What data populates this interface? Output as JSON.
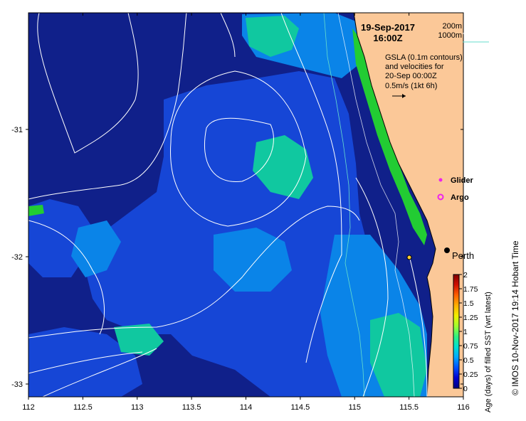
{
  "map": {
    "timestamp_date": "19-Sep-2017",
    "timestamp_time": "16:00Z",
    "depth_legend": [
      "200m",
      "1000m"
    ],
    "depth_legend_colors": [
      "#ffffff",
      "#66ddcc"
    ],
    "gsla_note": [
      "GSLA (0.1m contours)",
      "and velocities for",
      "20-Sep 00:00Z",
      "0.5m/s (1kt 6h)"
    ],
    "symbols": [
      {
        "label": "Glider",
        "color": "#ee22ee",
        "shape": "dot"
      },
      {
        "label": "Argo",
        "color": "#ee22ee",
        "shape": "ring"
      }
    ],
    "place_label": "Perth",
    "x_ticks": [
      "112",
      "112.5",
      "113",
      "113.5",
      "114",
      "114.5",
      "115",
      "115.5",
      "116"
    ],
    "y_ticks": [
      "-31",
      "-32",
      "-33"
    ],
    "land_color": "#fbc898",
    "credit": "© IMOS 10-Nov-2017 19:14 Hobart Time"
  },
  "colorbar": {
    "title": "Age (days) of filled SST (wrt latest)",
    "ticks": [
      "2",
      "1.75",
      "1.5",
      "1.25",
      "1",
      "0.75",
      "0.5",
      "0.25",
      "0"
    ],
    "colors": [
      "#000080",
      "#0000d0",
      "#0050ff",
      "#00a8ff",
      "#00e0d0",
      "#30f080",
      "#a0ff30",
      "#f0f000",
      "#ffb000",
      "#ff6000",
      "#d01000",
      "#800000"
    ]
  }
}
